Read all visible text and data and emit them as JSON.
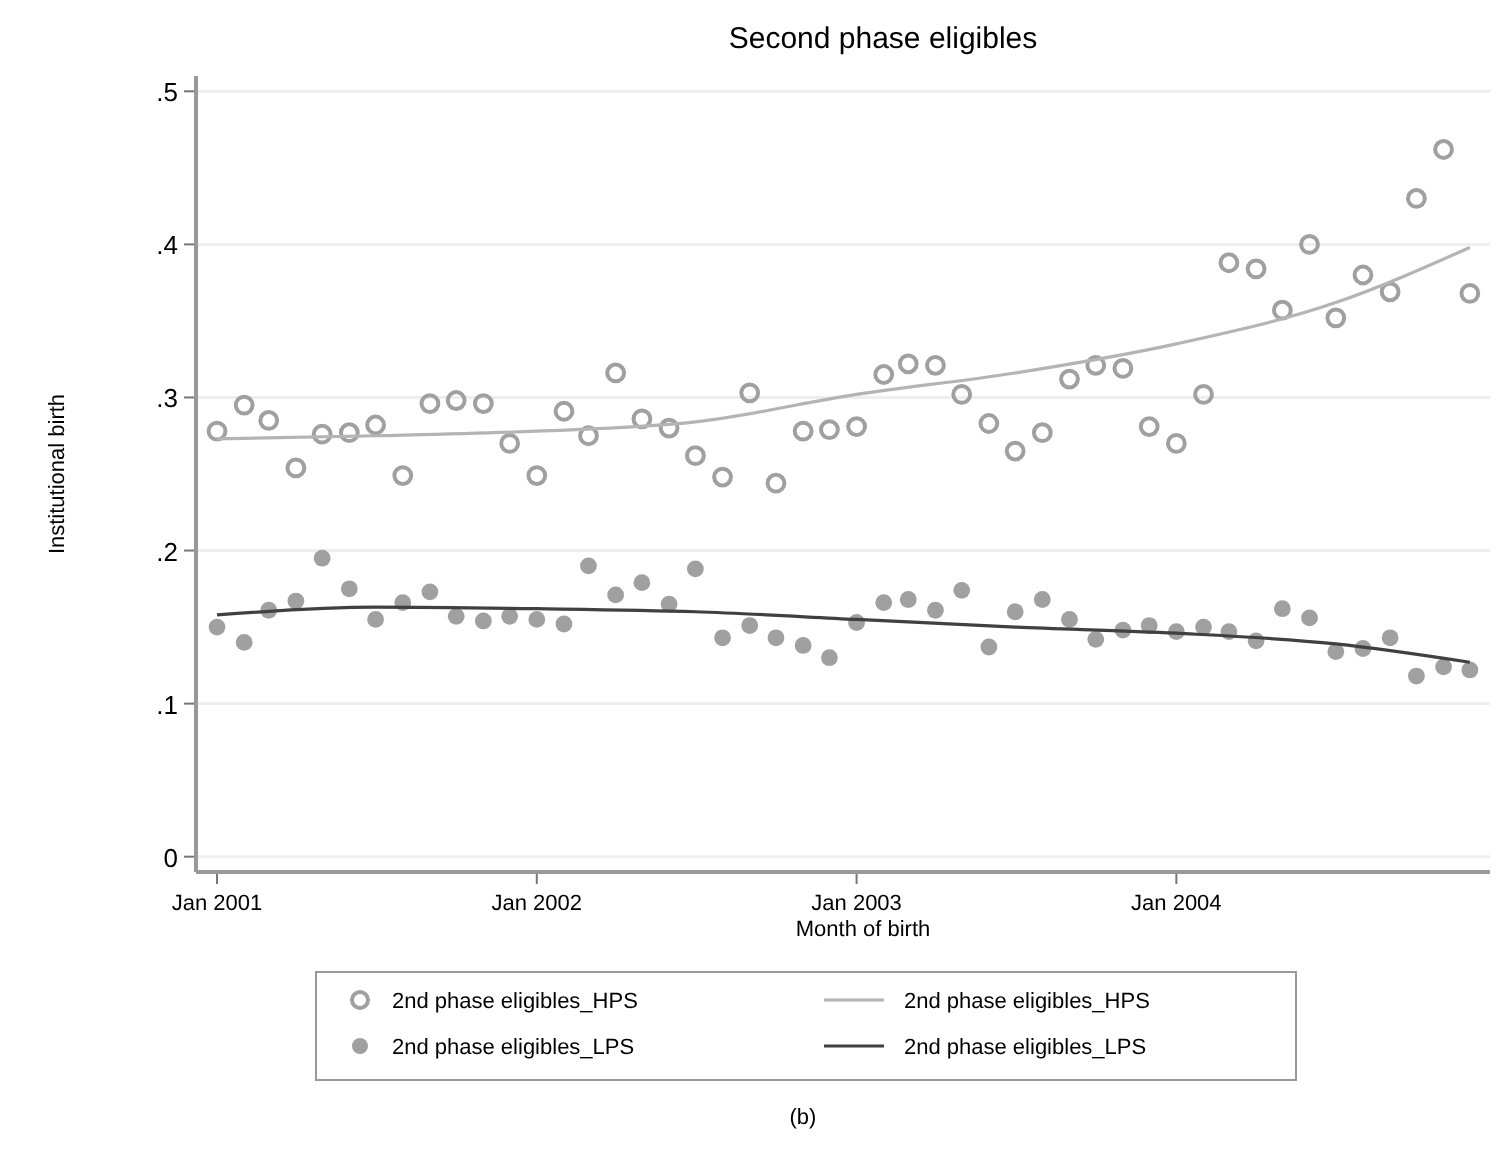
{
  "chart_data": {
    "type": "scatter",
    "title": "Second phase eligibles",
    "xlabel": "Month of birth",
    "ylabel": "Institutional birth",
    "annotations": [
      "(b)"
    ],
    "xlim": [
      "2000-12-08",
      "2004-12-24"
    ],
    "xticks": [
      {
        "value": "2001-01",
        "label": "Jan 2001"
      },
      {
        "value": "2002-01",
        "label": "Jan 2002"
      },
      {
        "value": "2003-01",
        "label": "Jan 2003"
      },
      {
        "value": "2004-01",
        "label": "Jan 2004"
      }
    ],
    "ylim": [
      -0.01,
      0.51
    ],
    "yticks": [
      0,
      {
        "value": 0.1,
        "label": ".1"
      },
      {
        "value": 0.2,
        "label": ".2"
      },
      {
        "value": 0.3,
        "label": ".3"
      },
      {
        "value": 0.4,
        "label": ".4"
      },
      {
        "value": 0.5,
        "label": ".5"
      }
    ],
    "grid": "y",
    "legend": "bottom",
    "x": [
      "2001-01",
      "2001-02",
      "2001-03",
      "2001-04",
      "2001-05",
      "2001-06",
      "2001-07",
      "2001-08",
      "2001-09",
      "2001-10",
      "2001-11",
      "2001-12",
      "2002-01",
      "2002-02",
      "2002-03",
      "2002-04",
      "2002-05",
      "2002-06",
      "2002-07",
      "2002-08",
      "2002-09",
      "2002-10",
      "2002-11",
      "2002-12",
      "2003-01",
      "2003-02",
      "2003-03",
      "2003-04",
      "2003-05",
      "2003-06",
      "2003-07",
      "2003-08",
      "2003-09",
      "2003-10",
      "2003-11",
      "2003-12",
      "2004-01",
      "2004-02",
      "2004-03",
      "2004-04",
      "2004-05",
      "2004-06",
      "2004-07",
      "2004-08",
      "2004-09",
      "2004-10",
      "2004-11",
      "2004-12"
    ],
    "series": [
      {
        "name": "2nd phase eligibles_HPS",
        "marker": "circle",
        "color": "#a0a0a0",
        "values": [
          0.278,
          0.295,
          0.285,
          0.254,
          0.276,
          0.277,
          0.282,
          0.249,
          0.296,
          0.298,
          0.296,
          0.27,
          0.249,
          0.291,
          0.275,
          0.316,
          0.286,
          0.28,
          0.262,
          0.248,
          0.303,
          0.244,
          0.278,
          0.279,
          0.281,
          0.315,
          0.322,
          0.321,
          0.302,
          0.283,
          0.265,
          0.277,
          0.312,
          0.321,
          0.319,
          0.281,
          0.27,
          0.302,
          0.388,
          0.384,
          0.357,
          0.4,
          0.352,
          0.38,
          0.369,
          0.43,
          0.462,
          0.368
        ]
      },
      {
        "name": "2nd phase eligibles_LPS",
        "marker": "circle",
        "color": "#a0a0a0",
        "values": [
          0.15,
          0.14,
          0.161,
          0.167,
          0.195,
          0.175,
          0.155,
          0.166,
          0.173,
          0.157,
          0.154,
          0.157,
          0.155,
          0.152,
          0.19,
          0.171,
          0.179,
          0.165,
          0.188,
          0.143,
          0.151,
          0.143,
          0.138,
          0.13,
          0.153,
          0.166,
          0.168,
          0.161,
          0.174,
          0.137,
          0.16,
          0.168,
          0.155,
          0.142,
          0.148,
          0.151,
          0.147,
          0.15,
          0.147,
          0.141,
          0.162,
          0.156,
          0.134,
          0.136,
          0.143,
          0.118,
          0.124,
          0.122
        ]
      },
      {
        "name": "2nd phase eligibles_HPS",
        "type": "line",
        "marker": "none",
        "color": "#b4b4b4",
        "x": [
          "2001-01",
          "2001-07",
          "2002-01",
          "2002-07",
          "2003-01",
          "2003-07",
          "2004-01",
          "2004-07",
          "2004-12"
        ],
        "values": [
          0.273,
          0.275,
          0.278,
          0.284,
          0.302,
          0.316,
          0.335,
          0.362,
          0.398
        ]
      },
      {
        "name": "2nd phase eligibles_LPS",
        "type": "line",
        "marker": "none",
        "color": "#404040",
        "x": [
          "2001-01",
          "2001-07",
          "2002-01",
          "2002-07",
          "2003-01",
          "2003-07",
          "2004-01",
          "2004-07",
          "2004-12"
        ],
        "values": [
          0.158,
          0.163,
          0.162,
          0.16,
          0.155,
          0.15,
          0.146,
          0.139,
          0.127
        ]
      }
    ]
  }
}
